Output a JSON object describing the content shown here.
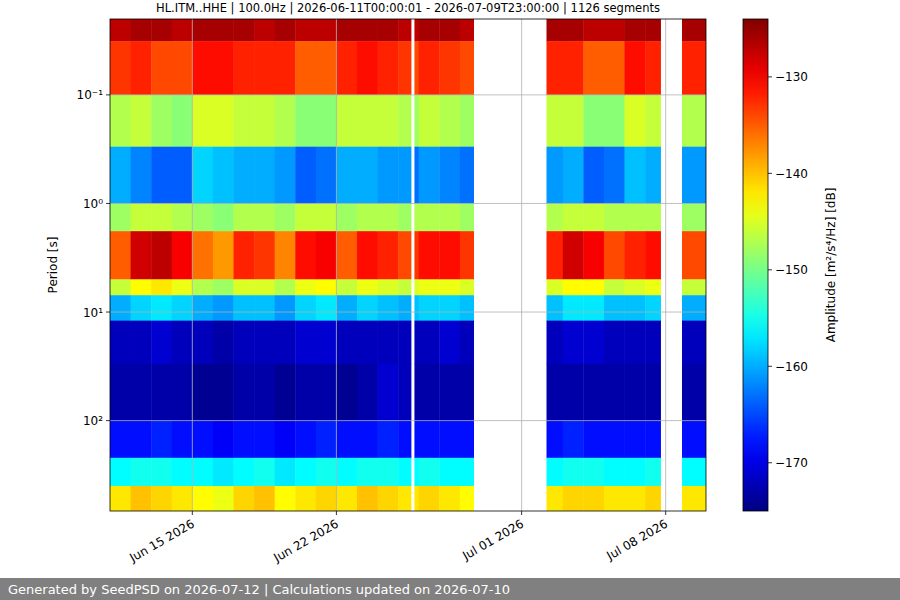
{
  "chart_data": {
    "type": "heatmap",
    "title": "HL.ITM..HHE | 100.0Hz | 2026-06-11T00:00:01 - 2026-07-09T23:00:00 | 1126 segments",
    "ylabel": "Period [s]",
    "colorbar_label": "Amplitude [m²/s⁴/Hz] [dB]",
    "footer": "Generated by SeedPSD on 2026-07-12 | Calculations updated on 2026-07-10",
    "log": "y",
    "grid": true,
    "xlim": [
      "2026-06-11T00:00:01",
      "2026-07-09T23:00:00"
    ],
    "xticks": [
      {
        "value": "2026-06-15T00:00:00",
        "label": "Jun 15 2026"
      },
      {
        "value": "2026-06-22T00:00:00",
        "label": "Jun 22 2026"
      },
      {
        "value": "2026-07-01T00:00:00",
        "label": "Jul 01 2026"
      },
      {
        "value": "2026-07-08T00:00:00",
        "label": "Jul 08 2026"
      }
    ],
    "ylim": [
      680,
      0.02
    ],
    "yticks": [
      {
        "value": 0.1,
        "label": "10⁻¹"
      },
      {
        "value": 1,
        "label": "10⁰"
      },
      {
        "value": 10,
        "label": "10¹"
      },
      {
        "value": 100,
        "label": "10²"
      }
    ],
    "time_edges": [
      "2026-06-11T00:00:01",
      "2026-06-12T00:00:00",
      "2026-06-13T00:00:00",
      "2026-06-14T00:00:00",
      "2026-06-15T00:00:00",
      "2026-06-16T00:00:00",
      "2026-06-17T00:00:00",
      "2026-06-18T00:00:00",
      "2026-06-19T00:00:00",
      "2026-06-20T00:00:00",
      "2026-06-21T00:00:00",
      "2026-06-22T00:00:00",
      "2026-06-23T00:00:00",
      "2026-06-24T00:00:00",
      "2026-06-25T00:00:00",
      "2026-06-25T15:00:00",
      "2026-06-25T19:00:00",
      "2026-06-26T00:00:00",
      "2026-06-27T00:00:00",
      "2026-06-28T00:00:00",
      "2026-06-28T16:00:00",
      "2026-07-02T05:00:00",
      "2026-07-03T00:00:00",
      "2026-07-04T00:00:00",
      "2026-07-05T00:00:00",
      "2026-07-06T00:00:00",
      "2026-07-07T00:00:00",
      "2026-07-07T18:00:00",
      "2026-07-08T19:00:00",
      "2026-07-09T23:00:00"
    ],
    "period_edges": [
      0.02,
      0.032,
      0.1,
      0.3,
      1,
      1.8,
      5,
      7,
      12,
      30,
      100,
      220,
      400,
      680
    ],
    "values": [
      [
        -127,
        -133,
        -147,
        -160,
        -148,
        -135,
        -146,
        -160,
        -172,
        -173,
        -168,
        -156,
        -142
      ],
      [
        -126,
        -132,
        -146,
        -162,
        -146,
        -128,
        -143,
        -158,
        -172,
        -173,
        -168,
        -155,
        -140
      ],
      [
        -126,
        -134,
        -148,
        -164,
        -146,
        -127,
        -142,
        -157,
        -171,
        -173,
        -167,
        -155,
        -141
      ],
      [
        -127,
        -134,
        -149,
        -164,
        -147,
        -130,
        -144,
        -158,
        -172,
        -173,
        -168,
        -156,
        -142
      ],
      [
        -126,
        -131,
        -145,
        -158,
        -148,
        -136,
        -147,
        -160,
        -172,
        -174,
        -168,
        -156,
        -143
      ],
      [
        -126,
        -131,
        -145,
        -159,
        -149,
        -138,
        -148,
        -161,
        -173,
        -174,
        -169,
        -157,
        -144
      ],
      [
        -126,
        -132,
        -146,
        -160,
        -147,
        -132,
        -145,
        -159,
        -172,
        -173,
        -168,
        -156,
        -141
      ],
      [
        -127,
        -132,
        -146,
        -160,
        -147,
        -133,
        -145,
        -159,
        -172,
        -173,
        -168,
        -155,
        -140
      ],
      [
        -126,
        -132,
        -147,
        -161,
        -148,
        -137,
        -147,
        -161,
        -172,
        -174,
        -169,
        -157,
        -143
      ],
      [
        -127,
        -135,
        -149,
        -164,
        -146,
        -131,
        -144,
        -158,
        -171,
        -173,
        -168,
        -156,
        -142
      ],
      [
        -127,
        -135,
        -149,
        -163,
        -146,
        -130,
        -143,
        -157,
        -171,
        -173,
        -167,
        -155,
        -141
      ],
      [
        -126,
        -132,
        -146,
        -160,
        -148,
        -135,
        -146,
        -160,
        -172,
        -174,
        -168,
        -156,
        -142
      ],
      [
        -126,
        -131,
        -146,
        -160,
        -147,
        -131,
        -144,
        -158,
        -172,
        -173,
        -168,
        -155,
        -140
      ],
      [
        -126,
        -132,
        -146,
        -161,
        -147,
        -132,
        -145,
        -159,
        -172,
        -171,
        -167,
        -155,
        -141
      ],
      [
        -127,
        -133,
        -147,
        -161,
        -148,
        -134,
        -146,
        -160,
        -172,
        -172,
        -168,
        -156,
        -142
      ],
      null,
      [
        -127,
        -134,
        -148,
        -163,
        -147,
        -133,
        -145,
        -159,
        -172,
        -173,
        -168,
        -156,
        -142
      ],
      [
        -126,
        -132,
        -146,
        -161,
        -147,
        -131,
        -144,
        -158,
        -172,
        -173,
        -168,
        -155,
        -141
      ],
      [
        -126,
        -133,
        -147,
        -162,
        -147,
        -131,
        -144,
        -158,
        -171,
        -173,
        -168,
        -156,
        -142
      ],
      [
        -127,
        -134,
        -148,
        -163,
        -148,
        -133,
        -145,
        -159,
        -172,
        -173,
        -168,
        -156,
        -143
      ],
      null,
      [
        -126,
        -132,
        -146,
        -161,
        -147,
        -132,
        -145,
        -159,
        -172,
        -173,
        -168,
        -156,
        -142
      ],
      [
        -126,
        -132,
        -146,
        -160,
        -146,
        -128,
        -143,
        -157,
        -171,
        -173,
        -167,
        -155,
        -141
      ],
      [
        -127,
        -135,
        -149,
        -164,
        -146,
        -130,
        -143,
        -157,
        -171,
        -173,
        -168,
        -155,
        -141
      ],
      [
        -127,
        -135,
        -149,
        -163,
        -147,
        -134,
        -146,
        -159,
        -172,
        -173,
        -168,
        -156,
        -142
      ],
      [
        -126,
        -131,
        -145,
        -159,
        -147,
        -132,
        -145,
        -159,
        -172,
        -173,
        -168,
        -156,
        -142
      ],
      [
        -126,
        -132,
        -146,
        -160,
        -147,
        -131,
        -144,
        -158,
        -172,
        -173,
        -168,
        -155,
        -141
      ],
      null,
      [
        -126,
        -132,
        -147,
        -161,
        -148,
        -134,
        -146,
        -160,
        -172,
        -173,
        -168,
        -156,
        -142
      ]
    ],
    "color_range": [
      -175,
      -124
    ],
    "color_ticks": [
      {
        "value": -130,
        "label": "−130"
      },
      {
        "value": -140,
        "label": "−140"
      },
      {
        "value": -150,
        "label": "−150"
      },
      {
        "value": -160,
        "label": "−160"
      },
      {
        "value": -170,
        "label": "−170"
      }
    ]
  }
}
